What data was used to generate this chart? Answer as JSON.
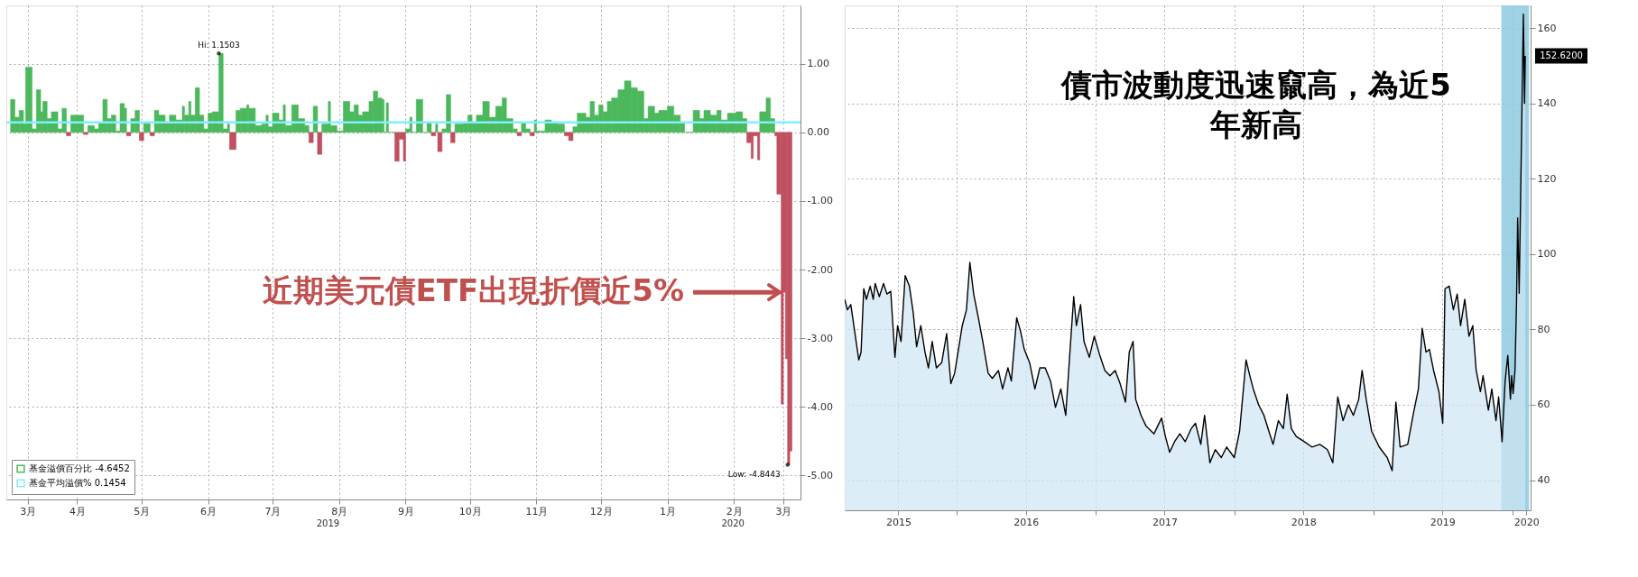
{
  "chart_data": [
    {
      "type": "bar",
      "x": [
        "2019-03-15",
        "2019-03-17",
        "2019-03-19",
        "2019-03-21",
        "2019-03-22",
        "2019-03-25",
        "2019-03-27",
        "2019-03-29",
        "2019-03-30",
        "2019-04-01",
        "2019-04-03",
        "2019-04-06",
        "2019-04-08",
        "2019-04-10",
        "2019-04-12",
        "2019-04-14",
        "2019-04-18",
        "2019-04-20",
        "2019-04-23",
        "2019-04-25",
        "2019-04-27",
        "2019-04-29",
        "2019-05-01",
        "2019-05-03",
        "2019-05-05",
        "2019-05-07",
        "2019-05-08",
        "2019-05-10",
        "2019-05-12",
        "2019-05-14",
        "2019-05-16",
        "2019-05-19",
        "2019-05-21",
        "2019-05-23",
        "2019-05-26",
        "2019-05-28",
        "2019-05-31",
        "2019-06-03",
        "2019-06-04",
        "2019-06-06",
        "2019-06-07",
        "2019-06-09",
        "2019-06-11",
        "2019-06-13",
        "2019-06-15",
        "2019-06-17",
        "2019-06-20",
        "2019-06-22",
        "2019-06-24",
        "2019-06-25",
        "2019-06-28",
        "2019-06-30",
        "2019-07-03",
        "2019-07-04",
        "2019-07-07",
        "2019-07-10",
        "2019-07-12",
        "2019-07-13",
        "2019-07-15",
        "2019-07-18",
        "2019-07-20",
        "2019-07-21",
        "2019-07-24",
        "2019-07-27",
        "2019-07-30",
        "2019-08-01",
        "2019-08-03",
        "2019-08-05",
        "2019-08-07",
        "2019-08-10",
        "2019-08-11",
        "2019-08-14",
        "2019-08-17",
        "2019-08-20",
        "2019-08-22",
        "2019-08-24",
        "2019-08-26",
        "2019-08-29",
        "2019-08-31",
        "2019-09-02",
        "2019-09-04",
        "2019-09-05",
        "2019-09-06",
        "2019-09-07",
        "2019-09-10",
        "2019-09-12",
        "2019-09-14",
        "2019-09-15",
        "2019-09-17",
        "2019-09-18",
        "2019-09-20",
        "2019-09-23",
        "2019-09-25",
        "2019-09-27",
        "2019-09-29",
        "2019-09-30",
        "2019-10-02",
        "2019-10-04",
        "2019-10-06",
        "2019-10-08",
        "2019-10-12",
        "2019-10-14",
        "2019-10-16",
        "2019-10-18",
        "2019-10-21",
        "2019-10-24",
        "2019-10-27",
        "2019-10-30",
        "2019-11-01",
        "2019-11-04",
        "2019-11-06",
        "2019-11-08",
        "2019-11-10",
        "2019-11-12",
        "2019-11-14",
        "2019-11-15",
        "2019-11-19",
        "2019-11-22",
        "2019-11-25",
        "2019-11-28",
        "2019-11-30",
        "2019-12-02",
        "2019-12-04",
        "2019-12-08",
        "2019-12-10",
        "2019-12-12",
        "2019-12-14",
        "2019-12-16",
        "2019-12-18",
        "2019-12-20",
        "2019-12-23",
        "2019-12-26",
        "2019-12-29",
        "2020-01-01",
        "2020-01-04",
        "2020-01-06",
        "2020-01-09",
        "2020-01-11",
        "2020-01-15",
        "2020-01-18",
        "2020-01-21",
        "2020-01-23",
        "2020-01-27",
        "2020-01-30",
        "2020-02-01",
        "2020-02-04",
        "2020-02-07",
        "2020-02-09",
        "2020-02-12",
        "2020-02-16",
        "2020-02-19",
        "2020-02-21",
        "2020-02-23",
        "2020-02-24",
        "2020-02-26",
        "2020-02-27",
        "2020-03-01",
        "2020-03-03",
        "2020-03-05",
        "2020-03-06",
        "2020-03-08",
        "2020-03-09",
        "2020-03-10",
        "2020-03-11",
        "2020-03-12"
      ],
      "series": [
        {
          "name": "基金溢價百分比 -4.6452",
          "color": "#4cb85c",
          "values": [
            0.48,
            0.22,
            0.32,
            0.12,
            0.95,
            0.05,
            0.62,
            0.3,
            0.45,
            0.2,
            0.3,
            0.05,
            0.35,
            -0.05,
            0.25,
            0.25,
            -0.03,
            0.1,
            0.05,
            0.15,
            0.48,
            0.2,
            0.25,
            0.02,
            0.42,
            0.35,
            -0.05,
            0.2,
            0.32,
            -0.12,
            0.15,
            -0.05,
            0.32,
            0.25,
            0.15,
            0.25,
            0.18,
            0.38,
            0.25,
            0.45,
            0.25,
            0.65,
            0.25,
            0.05,
            0.28,
            0.3,
            1.1503,
            0.05,
            0.12,
            -0.25,
            0.32,
            0.35,
            0.4,
            0.35,
            0.1,
            0.12,
            0.25,
            0.08,
            0.28,
            0.18,
            0.4,
            0.1,
            0.4,
            0.2,
            0.1,
            -0.15,
            0.38,
            -0.32,
            0.12,
            0.45,
            0.1,
            0.02,
            0.45,
            0.3,
            0.4,
            0.25,
            0.3,
            0.45,
            0.6,
            0.5,
            0.48,
            0.0,
            0.43,
            0.0,
            -0.42,
            -0.1,
            -0.42,
            0.05,
            0.22,
            0.0,
            0.48,
            0.0,
            0.15,
            -0.05,
            0.12,
            -0.28,
            0.05,
            0.55,
            -0.15,
            0.12,
            0.15,
            0.25,
            0.15,
            0.25,
            0.45,
            0.22,
            0.38,
            0.5,
            0.2,
            0.05,
            -0.05,
            0.15,
            0.05,
            -0.05,
            0.18,
            0.02,
            0.18,
            0.15,
            0.12,
            -0.05,
            -0.12,
            0.08,
            0.28,
            0.22,
            0.45,
            0.25,
            0.4,
            0.3,
            0.45,
            0.5,
            0.62,
            0.75,
            0.65,
            0.6,
            0.2,
            0.38,
            0.28,
            0.32,
            0.38,
            0.25,
            0.15,
            0.0,
            0.32,
            0.2,
            0.32,
            0.25,
            0.32,
            0.18,
            0.28,
            0.3,
            0.2,
            -0.15,
            -0.38,
            -0.05,
            -0.4,
            0.3,
            0.5,
            0.2,
            -0.05,
            -0.9,
            -3.96,
            -2.33,
            -3.3,
            -4.8443,
            -4.6452
          ],
          "colors": [
            "#4cb85c",
            "#4cb85c",
            "#4cb85c",
            "#4cb85c",
            "#4cb85c",
            "#4cb85c",
            "#4cb85c",
            "#4cb85c",
            "#4cb85c",
            "#4cb85c",
            "#4cb85c",
            "#4cb85c",
            "#4cb85c",
            "#c0505f",
            "#4cb85c",
            "#4cb85c",
            "#c0505f",
            "#4cb85c",
            "#4cb85c",
            "#4cb85c",
            "#4cb85c",
            "#4cb85c",
            "#4cb85c",
            "#4cb85c",
            "#4cb85c",
            "#4cb85c",
            "#c0505f",
            "#4cb85c",
            "#4cb85c",
            "#c0505f",
            "#4cb85c",
            "#c0505f",
            "#4cb85c",
            "#4cb85c",
            "#4cb85c",
            "#4cb85c",
            "#4cb85c",
            "#4cb85c",
            "#4cb85c",
            "#4cb85c",
            "#4cb85c",
            "#4cb85c",
            "#4cb85c",
            "#4cb85c",
            "#4cb85c",
            "#4cb85c",
            "#4cb85c",
            "#4cb85c",
            "#4cb85c",
            "#c0505f",
            "#4cb85c",
            "#4cb85c",
            "#4cb85c",
            "#4cb85c",
            "#4cb85c",
            "#4cb85c",
            "#4cb85c",
            "#4cb85c",
            "#4cb85c",
            "#4cb85c",
            "#4cb85c",
            "#4cb85c",
            "#4cb85c",
            "#4cb85c",
            "#4cb85c",
            "#c0505f",
            "#4cb85c",
            "#c0505f",
            "#4cb85c",
            "#4cb85c",
            "#4cb85c",
            "#4cb85c",
            "#4cb85c",
            "#4cb85c",
            "#4cb85c",
            "#4cb85c",
            "#4cb85c",
            "#4cb85c",
            "#4cb85c",
            "#4cb85c",
            "#4cb85c",
            "#4cb85c",
            "#4cb85c",
            "#4cb85c",
            "#c0505f",
            "#c0505f",
            "#c0505f",
            "#4cb85c",
            "#4cb85c",
            "#4cb85c",
            "#4cb85c",
            "#4cb85c",
            "#4cb85c",
            "#c0505f",
            "#4cb85c",
            "#c0505f",
            "#4cb85c",
            "#4cb85c",
            "#c0505f",
            "#4cb85c",
            "#4cb85c",
            "#4cb85c",
            "#4cb85c",
            "#4cb85c",
            "#4cb85c",
            "#4cb85c",
            "#4cb85c",
            "#4cb85c",
            "#4cb85c",
            "#4cb85c",
            "#c0505f",
            "#4cb85c",
            "#4cb85c",
            "#c0505f",
            "#4cb85c",
            "#4cb85c",
            "#4cb85c",
            "#4cb85c",
            "#4cb85c",
            "#c0505f",
            "#c0505f",
            "#4cb85c",
            "#4cb85c",
            "#4cb85c",
            "#4cb85c",
            "#4cb85c",
            "#4cb85c",
            "#4cb85c",
            "#4cb85c",
            "#4cb85c",
            "#4cb85c",
            "#4cb85c",
            "#4cb85c",
            "#4cb85c",
            "#4cb85c",
            "#4cb85c",
            "#4cb85c",
            "#4cb85c",
            "#4cb85c",
            "#4cb85c",
            "#4cb85c",
            "#4cb85c",
            "#4cb85c",
            "#4cb85c",
            "#4cb85c",
            "#4cb85c",
            "#4cb85c",
            "#4cb85c",
            "#4cb85c",
            "#4cb85c",
            "#4cb85c",
            "#c0505f",
            "#c0505f",
            "#c0505f",
            "#c0505f",
            "#4cb85c",
            "#4cb85c",
            "#4cb85c",
            "#c0505f",
            "#c0505f",
            "#c0505f",
            "#c0505f",
            "#c0505f",
            "#c0505f",
            "#c0505f"
          ]
        }
      ],
      "xlim": [
        "2019-03-13",
        "2020-03-17"
      ],
      "xticks": [
        {
          "value": "2019-03-23",
          "label": "3月"
        },
        {
          "value": "2019-04-15",
          "label": "4月"
        },
        {
          "value": "2019-05-15",
          "label": "5月"
        },
        {
          "value": "2019-06-15",
          "label": "6月"
        },
        {
          "value": "2019-07-15",
          "label": "7月"
        },
        {
          "value": "2019-08-15",
          "label": "8月"
        },
        {
          "value": "2019-09-15",
          "label": "9月"
        },
        {
          "value": "2019-10-15",
          "label": "10月"
        },
        {
          "value": "2019-11-15",
          "label": "11月"
        },
        {
          "value": "2019-12-15",
          "label": "12月"
        },
        {
          "value": "2020-01-15",
          "label": "1月"
        },
        {
          "value": "2020-02-15",
          "label": "2月"
        },
        {
          "value": "2020-03-09",
          "label": "3月"
        }
      ],
      "ylim": [
        -5.35,
        1.85
      ],
      "yticks": [
        {
          "value": 1,
          "label": "1.00"
        },
        {
          "value": 0,
          "label": "0.00"
        },
        {
          "value": -1,
          "label": "-1.00"
        },
        {
          "value": -2,
          "label": "-2.00"
        },
        {
          "value": -3,
          "label": "-3.00"
        },
        {
          "value": -4,
          "label": "-4.00"
        },
        {
          "value": -5,
          "label": "-5.00"
        }
      ],
      "grid": true,
      "legend": "bottom left",
      "ref_lines": [
        {
          "axis": "y",
          "value": 0.1454,
          "label": "基金平均溢價% 0.1454",
          "color": "#7fefff"
        }
      ],
      "annotations": [
        {
          "text": "Hi: 1.1503",
          "x": "2019-06-20",
          "y": 1.1503
        },
        {
          "text": "Low: -4.8443",
          "x": "2020-03-11",
          "y": -4.8443
        },
        {
          "text": "近期美元債ETF出現折價近5%",
          "x": "2020-03-09",
          "y": -2.33
        },
        "2019",
        "2020"
      ]
    },
    {
      "type": "area",
      "x": [
        "2015-03-13",
        "2015-03-20",
        "2015-03-29",
        "2015-04-08",
        "2015-04-19",
        "2015-04-25",
        "2015-05-02",
        "2015-05-09",
        "2015-05-19",
        "2015-05-27",
        "2015-06-01",
        "2015-06-12",
        "2015-06-23",
        "2015-07-02",
        "2015-07-12",
        "2015-07-23",
        "2015-07-30",
        "2015-08-08",
        "2015-08-19",
        "2015-08-30",
        "2015-09-09",
        "2015-09-18",
        "2015-09-29",
        "2015-10-10",
        "2015-10-19",
        "2015-10-29",
        "2015-11-09",
        "2015-11-23",
        "2015-12-06",
        "2015-12-17",
        "2015-12-27",
        "2016-01-05",
        "2016-01-16",
        "2016-01-27",
        "2016-02-05",
        "2016-02-15",
        "2016-02-26",
        "2016-03-10",
        "2016-03-24",
        "2016-04-04",
        "2016-04-20",
        "2016-05-01",
        "2016-05-15",
        "2016-05-24",
        "2016-06-07",
        "2016-06-17",
        "2016-06-27",
        "2016-07-11",
        "2016-07-25",
        "2016-08-07",
        "2016-08-21",
        "2016-09-04",
        "2016-09-17",
        "2016-10-01",
        "2016-10-14",
        "2016-10-25",
        "2016-11-04",
        "2016-11-11",
        "2016-11-22",
        "2016-12-01",
        "2016-12-15",
        "2016-12-28",
        "2017-01-11",
        "2017-01-25",
        "2017-02-07",
        "2017-02-21",
        "2017-03-06",
        "2017-03-20",
        "2017-03-30",
        "2017-04-09",
        "2017-04-16",
        "2017-04-30",
        "2017-05-13",
        "2017-06-03",
        "2017-06-23",
        "2017-07-03",
        "2017-07-14",
        "2017-07-27",
        "2017-08-10",
        "2017-08-24",
        "2017-09-09",
        "2017-09-20",
        "2017-10-04",
        "2017-10-14",
        "2017-10-28",
        "2017-11-11",
        "2017-11-27",
        "2017-12-11",
        "2017-12-31",
        "2018-01-14",
        "2018-01-31",
        "2018-02-10",
        "2018-02-19",
        "2018-03-05",
        "2018-03-19",
        "2018-04-01",
        "2018-04-12",
        "2018-04-26",
        "2018-05-09",
        "2018-05-19",
        "2018-05-30",
        "2018-06-12",
        "2018-07-03",
        "2018-07-23",
        "2018-08-13",
        "2018-09-02",
        "2018-09-16",
        "2018-09-29",
        "2018-10-13",
        "2018-10-27",
        "2018-11-09",
        "2018-11-23",
        "2018-12-02",
        "2018-12-13",
        "2018-12-27",
        "2019-01-16",
        "2019-02-06",
        "2019-02-19",
        "2019-03-01",
        "2019-03-12",
        "2019-04-01",
        "2019-04-15",
        "2019-04-29",
        "2019-05-09",
        "2019-05-19",
        "2019-05-28",
        "2019-06-08",
        "2019-06-22",
        "2019-07-02",
        "2019-07-08",
        "2019-07-19",
        "2019-07-30",
        "2019-08-09",
        "2019-08-18",
        "2019-08-29",
        "2019-09-09",
        "2019-09-19",
        "2019-09-28",
        "2019-10-09",
        "2019-10-16",
        "2019-10-30",
        "2019-11-08",
        "2019-11-19",
        "2019-11-26",
        "2019-12-05",
        "2019-12-13",
        "2019-12-20",
        "2019-12-27",
        "2019-12-30",
        "2020-01-03",
        "2020-01-08",
        "2020-01-12",
        "2020-01-15",
        "2020-01-19",
        "2020-01-25",
        "2020-01-30",
        "2020-02-02",
        "2020-02-04"
      ],
      "series": [
        {
          "color": "#000000",
          "values": [
            88.0,
            85.2,
            86.6,
            79.6,
            71.9,
            74.0,
            90.8,
            88.0,
            91.5,
            88.0,
            92.2,
            88.7,
            92.2,
            89.4,
            90.1,
            72.6,
            81.0,
            76.8,
            94.3,
            91.5,
            84.5,
            75.4,
            81.0,
            74.0,
            69.8,
            76.8,
            69.8,
            71.2,
            78.9,
            65.6,
            68.4,
            74.0,
            81.0,
            85.2,
            97.8,
            89.4,
            83.8,
            76.8,
            68.4,
            67.0,
            69.1,
            64.2,
            69.8,
            66.3,
            83.1,
            79.6,
            74.7,
            71.2,
            64.2,
            69.8,
            69.8,
            66.3,
            59.3,
            64.2,
            57.2,
            74.0,
            88.7,
            81.0,
            86.6,
            76.8,
            72.6,
            78.2,
            73.3,
            69.1,
            67.7,
            69.1,
            65.6,
            60.7,
            74.0,
            76.8,
            61.4,
            57.2,
            54.4,
            52.3,
            56.5,
            51.6,
            47.4,
            50.2,
            52.3,
            50.2,
            53.7,
            55.1,
            49.5,
            57.2,
            44.6,
            48.1,
            46.0,
            48.8,
            46.0,
            53.0,
            71.9,
            67.7,
            64.2,
            60.0,
            57.2,
            53.0,
            49.5,
            55.8,
            53.7,
            62.8,
            53.7,
            51.6,
            50.2,
            48.8,
            49.5,
            48.1,
            44.6,
            62.1,
            55.8,
            60.0,
            57.2,
            61.4,
            69.1,
            61.4,
            53.0,
            48.8,
            46.0,
            42.5,
            60.7,
            48.8,
            49.5,
            57.2,
            64.2,
            80.3,
            74.0,
            74.7,
            69.1,
            63.5,
            55.1,
            90.8,
            91.5,
            85.2,
            89.4,
            81.0,
            88.0,
            78.2,
            81.0,
            69.1,
            63.5,
            67.7,
            58.6,
            64.2,
            55.8,
            62.1,
            50.2,
            66.2,
            73.1,
            61.5,
            67.7,
            63.0,
            69.2,
            87.3,
            109.6,
            89.6,
            130.0,
            163.7,
            140.0,
            152.62
          ]
        }
      ],
      "xlim": [
        "2015-03-13",
        "2020-02-18"
      ],
      "xticks": [
        {
          "value": "2015-08-01",
          "label": "2015"
        },
        {
          "value": "2016-01-01",
          "label": null
        },
        {
          "value": "2016-07-01",
          "label": "2016"
        },
        {
          "value": "2017-01-01",
          "label": null
        },
        {
          "value": "2017-07-01",
          "label": "2017"
        },
        {
          "value": "2018-01-01",
          "label": null
        },
        {
          "value": "2018-07-01",
          "label": "2018"
        },
        {
          "value": "2019-01-01",
          "label": null
        },
        {
          "value": "2019-07-01",
          "label": "2019"
        },
        {
          "value": "2020-01-01",
          "label": null
        },
        {
          "value": "2020-02-07",
          "label": "2020"
        }
      ],
      "ylim": [
        32,
        166
      ],
      "yticks": [
        40,
        60,
        80,
        100,
        120,
        140,
        160
      ],
      "grid": true,
      "bands": [
        {
          "axis": "x",
          "from": "2019-12-03",
          "to": "2020-02-14",
          "color": "#8ecae0"
        }
      ],
      "annotations": [
        "債市波動度迅速竄高，為近5\n年新高",
        {
          "text": "152.6200",
          "x": "2020-02-04",
          "y": 152.62
        }
      ]
    }
  ]
}
